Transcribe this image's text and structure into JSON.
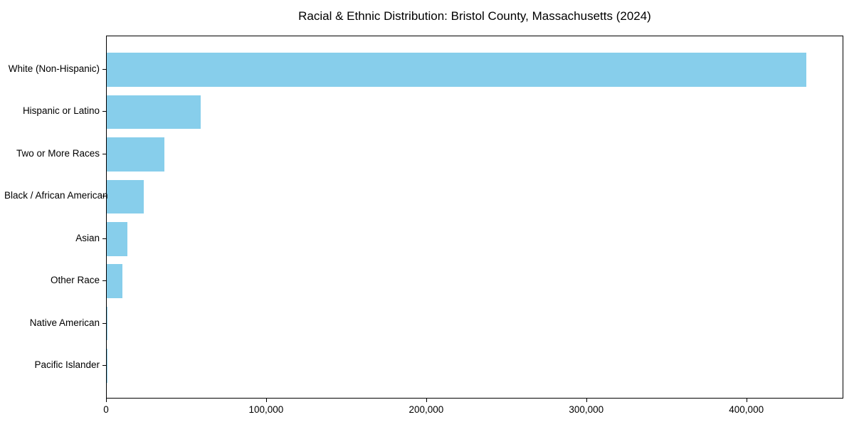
{
  "title": "Racial & Ethnic Distribution: Bristol County, Massachusetts (2024)",
  "chart_data": {
    "type": "bar",
    "orientation": "horizontal",
    "title": "Racial & Ethnic Distribution: Bristol County, Massachusetts (2024)",
    "categories": [
      "White (Non-Hispanic)",
      "Hispanic or Latino",
      "Two or More Races",
      "Black / African American",
      "Asian",
      "Other Race",
      "Native American",
      "Pacific Islander"
    ],
    "values": [
      438000,
      59000,
      36000,
      23000,
      13000,
      10000,
      400,
      100
    ],
    "bar_color": "#87CEEB",
    "xlabel": "",
    "ylabel": "",
    "xlim": [
      0,
      460600
    ],
    "x_ticks": [
      0,
      100000,
      200000,
      300000,
      400000
    ],
    "x_tick_labels": [
      "0",
      "100,000",
      "200,000",
      "300,000",
      "400,000"
    ],
    "grid": false,
    "legend": "none",
    "background_color": "#ffffff",
    "text_color": "#000000"
  }
}
